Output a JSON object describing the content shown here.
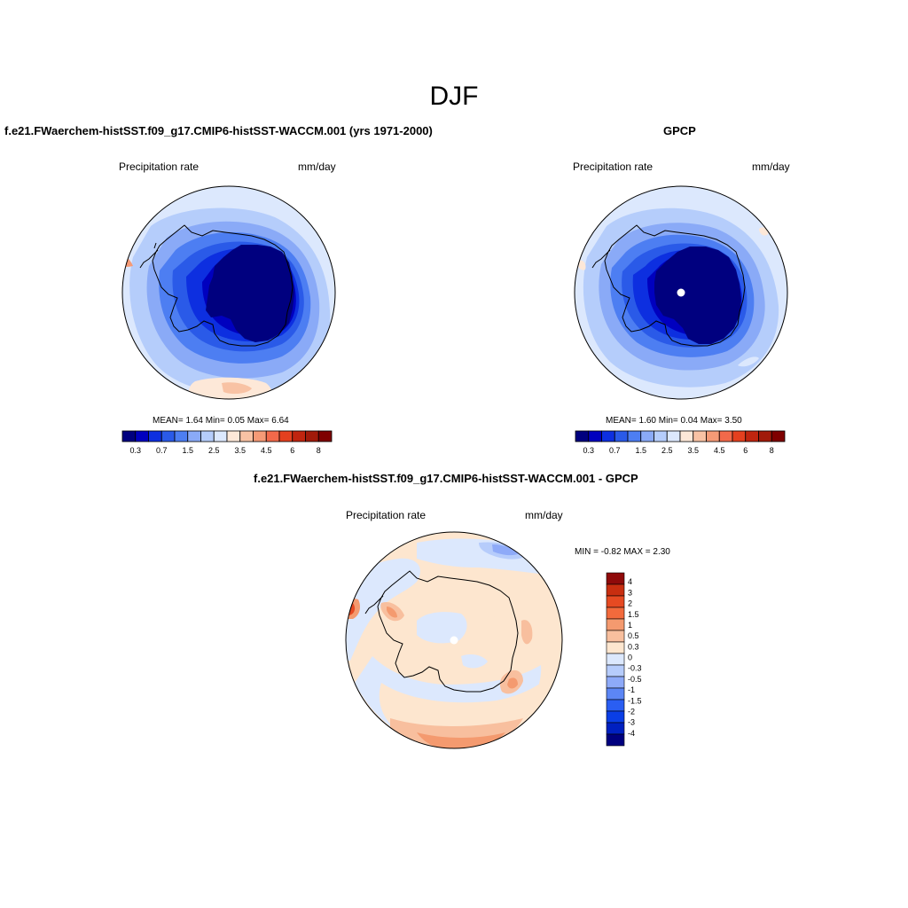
{
  "figure_title": "DJF",
  "colors": {
    "field_levels": [
      "#00007f",
      "#0000bf",
      "#0d2fe0",
      "#2a5ae8",
      "#4d7ef2",
      "#8aaaf7",
      "#b5cdfb",
      "#dce8fd",
      "#fde8d8",
      "#f8c2a4",
      "#f59a76",
      "#f2694a",
      "#e4401f",
      "#c0250f",
      "#a11a0a",
      "#7f0000"
    ],
    "diff_levels": [
      "#00007f",
      "#0020c0",
      "#0a3ee6",
      "#2a5ef2",
      "#5c86f5",
      "#8eaaf8",
      "#b6ccfb",
      "#dce8fd",
      "#fde6cf",
      "#f8bf9e",
      "#f49a6f",
      "#f26a3c",
      "#e64a22",
      "#c82e10",
      "#8f0a0a"
    ]
  },
  "panels": [
    {
      "title": "f.e21.FWaerchem-histSST.f09_g17.CMIP6-histSST-WACCM.001 (yrs 1971-2000)",
      "left_label": "Precipitation rate",
      "right_label": "mm/day",
      "stats": {
        "mean_label": "MEAN=",
        "mean": "1.64",
        "min_label": "Min=",
        "min": "0.05",
        "max_label": "Max=",
        "max": "6.64"
      },
      "colorbar_ticks": [
        "0.3",
        "0.7",
        "1.5",
        "2.5",
        "3.5",
        "4.5",
        "6",
        "8"
      ]
    },
    {
      "title": "GPCP",
      "left_label": "Precipitation rate",
      "right_label": "mm/day",
      "stats": {
        "mean_label": "MEAN=",
        "mean": "1.60",
        "min_label": "Min=",
        "min": "0.04",
        "max_label": "Max=",
        "max": "3.50"
      },
      "colorbar_ticks": [
        "0.3",
        "0.7",
        "1.5",
        "2.5",
        "3.5",
        "4.5",
        "6",
        "8"
      ]
    },
    {
      "title": "f.e21.FWaerchem-histSST.f09_g17.CMIP6-histSST-WACCM.001 - GPCP",
      "left_label": "Precipitation rate",
      "right_label": "mm/day",
      "minmax": {
        "min_label": "MIN =",
        "min": "-0.82",
        "max_label": "MAX =",
        "max": "2.30"
      },
      "colorbar_labels": [
        "4",
        "3",
        "2",
        "1.5",
        "1",
        "0.5",
        "0.3",
        "0",
        "-0.3",
        "-0.5",
        "-1",
        "-1.5",
        "-2",
        "-3",
        "-4"
      ]
    }
  ]
}
